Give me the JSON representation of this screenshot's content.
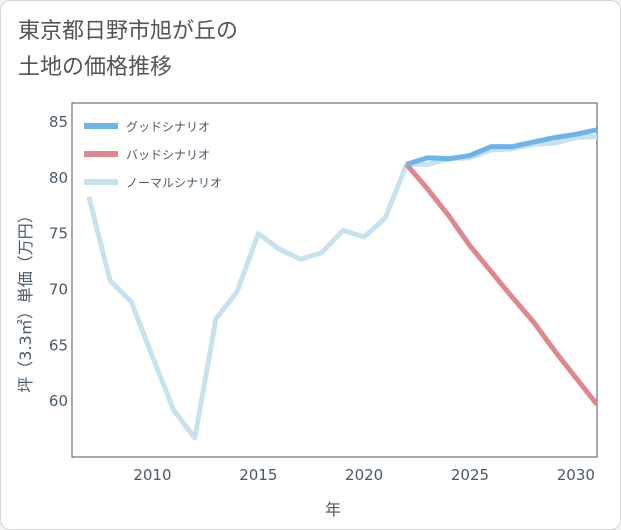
{
  "title": {
    "line1": "東京都日野市旭が丘の",
    "line2": "土地の価格推移"
  },
  "chart_data": {
    "type": "line",
    "xlabel": "年",
    "ylabel": "坪（3.3㎡）単価（万円）",
    "xlim": [
      2006.2,
      2031
    ],
    "ylim": [
      55,
      86.7
    ],
    "x_ticks": [
      2010,
      2015,
      2020,
      2025,
      2030
    ],
    "y_ticks": [
      60,
      65,
      70,
      75,
      80,
      85
    ],
    "grid": false,
    "legend_position": "top-left",
    "series": [
      {
        "name": "グッドシナリオ",
        "color": "#6cb4e8",
        "x": [
          2022,
          2023,
          2024,
          2025,
          2026,
          2027,
          2028,
          2029,
          2030,
          2031
        ],
        "y": [
          81.2,
          81.8,
          81.7,
          82.0,
          82.8,
          82.8,
          83.2,
          83.6,
          83.9,
          84.3
        ]
      },
      {
        "name": "バッドシナリオ",
        "color": "#e0868e",
        "x": [
          2022,
          2023,
          2024,
          2025,
          2026,
          2027,
          2028,
          2029,
          2030,
          2031
        ],
        "y": [
          81.2,
          79.0,
          76.6,
          73.9,
          71.6,
          69.3,
          67.1,
          64.5,
          62.1,
          59.7
        ]
      },
      {
        "name": "ノーマルシナリオ",
        "color": "#c6e2ef",
        "x": [
          2007,
          2008,
          2009,
          2010,
          2011,
          2012,
          2013,
          2014,
          2015,
          2016,
          2017,
          2018,
          2019,
          2020,
          2021,
          2022,
          2023,
          2024,
          2025,
          2026,
          2027,
          2028,
          2029,
          2030,
          2031
        ],
        "y": [
          78.3,
          70.8,
          68.9,
          64.0,
          59.2,
          56.7,
          67.4,
          69.8,
          75.0,
          73.6,
          72.7,
          73.3,
          75.3,
          74.7,
          76.4,
          81.2,
          81.2,
          81.7,
          81.8,
          82.5,
          82.6,
          83.0,
          83.1,
          83.6,
          83.7
        ]
      }
    ]
  }
}
